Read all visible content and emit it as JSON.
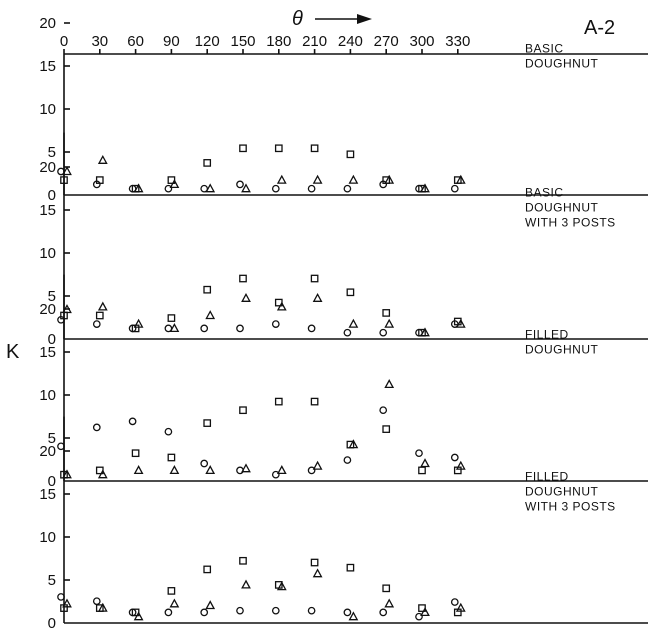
{
  "chart_data": {
    "type": "scatter",
    "figure_label": "A-2",
    "x_label": "θ",
    "y_label": "K",
    "x_ticks": [
      0,
      30,
      60,
      90,
      120,
      150,
      180,
      210,
      240,
      270,
      300,
      330
    ],
    "y_ticks": [
      0,
      5,
      10,
      15,
      20
    ],
    "xlim": [
      0,
      360
    ],
    "ylim": [
      0,
      24
    ],
    "marker_shapes": [
      "circle",
      "triangle",
      "square"
    ],
    "panels": [
      {
        "label_lines": [
          "BASIC",
          "DOUGHNUT"
        ],
        "series": [
          {
            "marker": "circle",
            "x": [
              0,
              30,
              60,
              90,
              120,
              150,
              180,
              210,
              240,
              270,
              300,
              330
            ],
            "y": [
              2.5,
              1,
              0.5,
              0.5,
              0.5,
              1,
              0.5,
              0.5,
              0.5,
              1,
              0.5,
              0.5
            ]
          },
          {
            "marker": "triangle",
            "x": [
              0,
              30,
              60,
              90,
              120,
              150,
              180,
              210,
              240,
              270,
              300,
              330
            ],
            "y": [
              2.5,
              3.8,
              0.5,
              1,
              0.5,
              0.5,
              1.5,
              1.5,
              1.5,
              1.5,
              0.5,
              1.5
            ]
          },
          {
            "marker": "square",
            "x": [
              0,
              30,
              60,
              90,
              120,
              150,
              180,
              210,
              240,
              270,
              300,
              330
            ],
            "y": [
              1.5,
              1.5,
              0.5,
              1.5,
              3.5,
              5.2,
              5.2,
              5.2,
              4.5,
              1.5,
              0.5,
              1.5
            ]
          }
        ]
      },
      {
        "label_lines": [
          "BASIC",
          "DOUGHNUT",
          "WITH 3 POSTS"
        ],
        "series": [
          {
            "marker": "circle",
            "x": [
              0,
              30,
              60,
              90,
              120,
              150,
              180,
              210,
              240,
              270,
              300,
              330
            ],
            "y": [
              2,
              1.5,
              1,
              1,
              1,
              1,
              1.5,
              1,
              0.5,
              0.5,
              0.5,
              1.5
            ]
          },
          {
            "marker": "triangle",
            "x": [
              0,
              30,
              60,
              90,
              120,
              150,
              180,
              210,
              240,
              270,
              300,
              330
            ],
            "y": [
              3.2,
              3.5,
              1.5,
              1,
              2.5,
              4.5,
              3.5,
              4.5,
              1.5,
              1.5,
              0.5,
              1.5
            ]
          },
          {
            "marker": "square",
            "x": [
              0,
              30,
              60,
              90,
              120,
              150,
              180,
              210,
              240,
              270,
              300,
              330
            ],
            "y": [
              2.5,
              2.5,
              1,
              2.2,
              5.5,
              6.8,
              4,
              6.8,
              5.2,
              2.8,
              0.5,
              1.8
            ]
          }
        ]
      },
      {
        "label_lines": [
          "FILLED",
          "DOUGHNUT"
        ],
        "series": [
          {
            "marker": "circle",
            "x": [
              0,
              30,
              60,
              90,
              120,
              150,
              180,
              210,
              240,
              270,
              300,
              330
            ],
            "y": [
              3.8,
              6,
              6.7,
              5.5,
              1.8,
              1,
              0.5,
              1,
              2.2,
              8,
              3,
              2.5
            ]
          },
          {
            "marker": "triangle",
            "x": [
              0,
              30,
              60,
              90,
              120,
              150,
              180,
              210,
              240,
              270,
              300,
              330
            ],
            "y": [
              0.5,
              0.5,
              1,
              1,
              1,
              1.2,
              1,
              1.5,
              4,
              11,
              1.8,
              1.5
            ]
          },
          {
            "marker": "square",
            "x": [
              0,
              30,
              60,
              90,
              120,
              150,
              180,
              210,
              240,
              270,
              300,
              330
            ],
            "y": [
              0.5,
              1,
              3,
              2.5,
              6.5,
              8,
              9,
              9,
              4,
              5.8,
              1,
              1
            ]
          }
        ]
      },
      {
        "label_lines": [
          "FILLED",
          "DOUGHNUT",
          "WITH 3 POSTS"
        ],
        "series": [
          {
            "marker": "circle",
            "x": [
              0,
              30,
              60,
              90,
              120,
              150,
              180,
              210,
              240,
              270,
              300,
              330
            ],
            "y": [
              2.8,
              2.3,
              1,
              1,
              1,
              1.2,
              1.2,
              1.2,
              1,
              1,
              0.5,
              2.2
            ]
          },
          {
            "marker": "triangle",
            "x": [
              0,
              30,
              60,
              90,
              120,
              150,
              180,
              210,
              240,
              270,
              300,
              330
            ],
            "y": [
              2,
              1.5,
              0.5,
              2,
              1.8,
              4.2,
              4,
              5.5,
              0.5,
              2,
              1,
              1.5
            ]
          },
          {
            "marker": "square",
            "x": [
              0,
              30,
              60,
              90,
              120,
              150,
              180,
              210,
              240,
              270,
              300,
              330
            ],
            "y": [
              1.5,
              1.5,
              1,
              3.5,
              6,
              7,
              4.2,
              6.8,
              6.2,
              3.8,
              1.5,
              1
            ]
          }
        ]
      }
    ]
  }
}
